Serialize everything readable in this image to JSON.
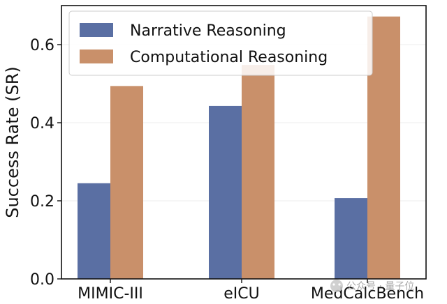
{
  "chart_data": {
    "type": "bar",
    "categories": [
      "MIMIC-III",
      "eICU",
      "MedCalcBench"
    ],
    "series": [
      {
        "name": "Narrative Reasoning",
        "values": [
          0.245,
          0.443,
          0.207
        ],
        "color": "#5a6fa3"
      },
      {
        "name": "Computational Reasoning",
        "values": [
          0.494,
          0.548,
          0.672
        ],
        "color": "#c9906a"
      }
    ],
    "title": "",
    "xlabel": "",
    "ylabel": "Success Rate (SR)",
    "ylim": [
      0,
      0.7
    ],
    "yticks": [
      "0.0",
      "0.2",
      "0.4",
      "0.6"
    ],
    "grid": true,
    "legend_position": "top-left"
  },
  "watermark": {
    "icon": "wechat-icon",
    "text": "公众号 · 量子位"
  }
}
